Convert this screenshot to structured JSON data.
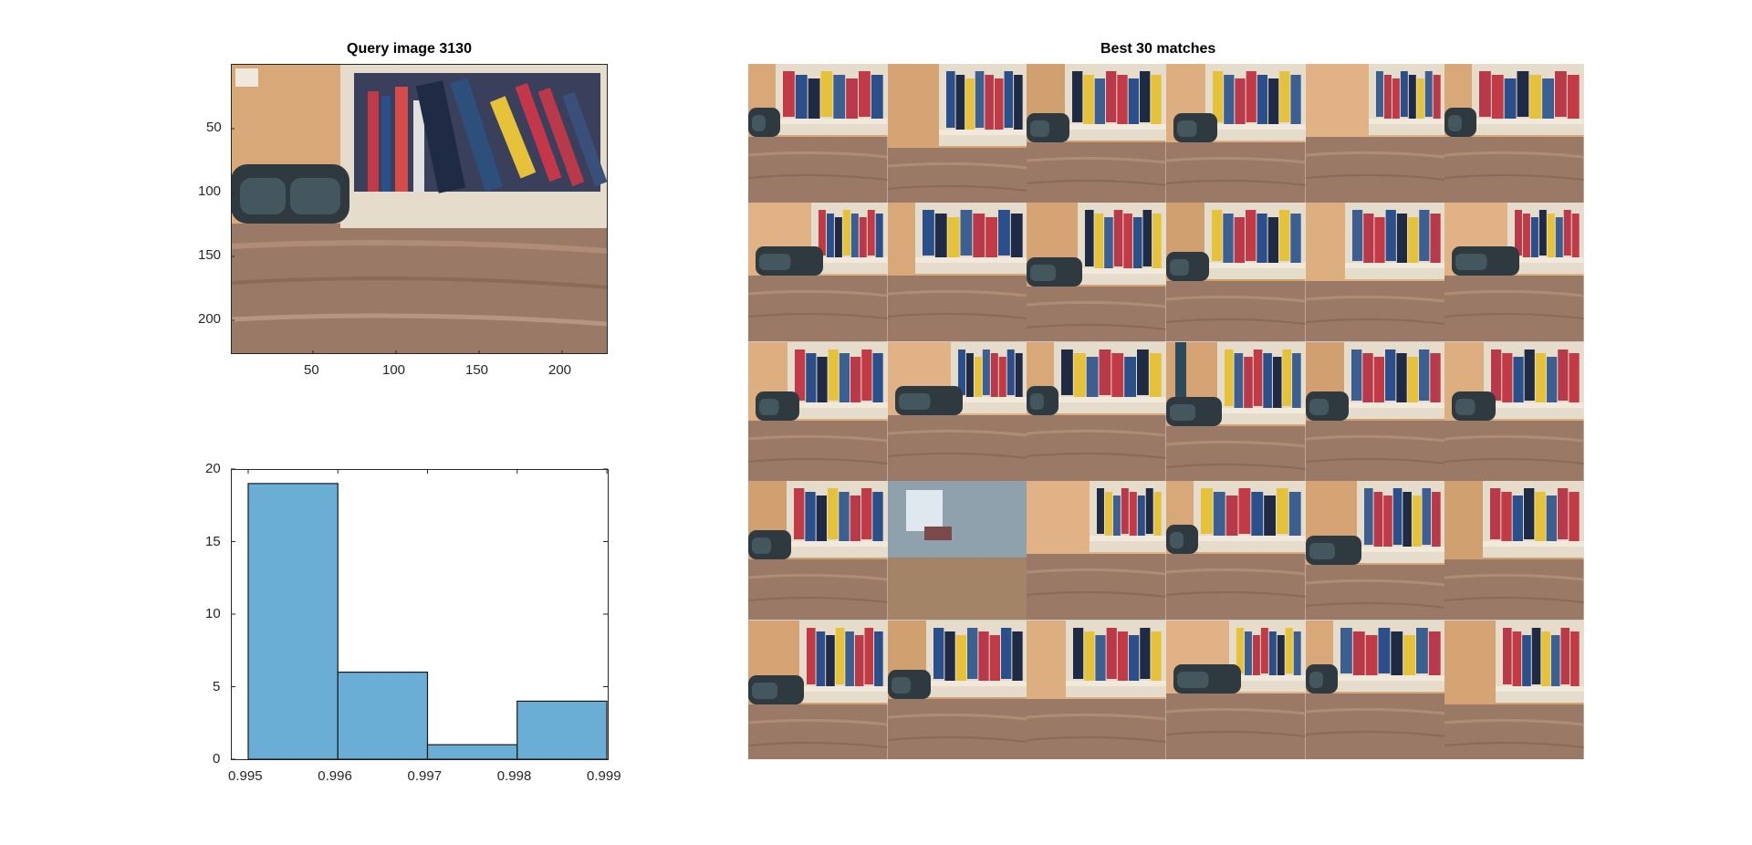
{
  "query_panel": {
    "title": "Query image 3130",
    "x_ticks": [
      "50",
      "100",
      "150",
      "200"
    ],
    "y_ticks": [
      "50",
      "100",
      "150",
      "200"
    ],
    "scene_colors": {
      "wall": "#d9a878",
      "floor": "#9a7a66",
      "shelf": "#e6dccb",
      "shoes": "#2f3a40"
    }
  },
  "matches_panel": {
    "title": "Best 30 matches",
    "rows": 5,
    "cols": 6,
    "count": 30
  },
  "chart_data": {
    "type": "bar",
    "title": "",
    "xlabel": "",
    "ylabel": "",
    "bin_edges": [
      0.995,
      0.996,
      0.997,
      0.998,
      0.999
    ],
    "values": [
      19,
      6,
      1,
      4
    ],
    "xlim": [
      0.995,
      0.999
    ],
    "ylim": [
      0,
      20
    ],
    "x_tick_labels": [
      "0.995",
      "0.996",
      "0.997",
      "0.998",
      "0.999"
    ],
    "y_tick_labels": [
      "0",
      "5",
      "10",
      "15",
      "20"
    ],
    "grid": false,
    "bar_color": "#6aaed6",
    "edge_color": "#1a1a1a"
  }
}
